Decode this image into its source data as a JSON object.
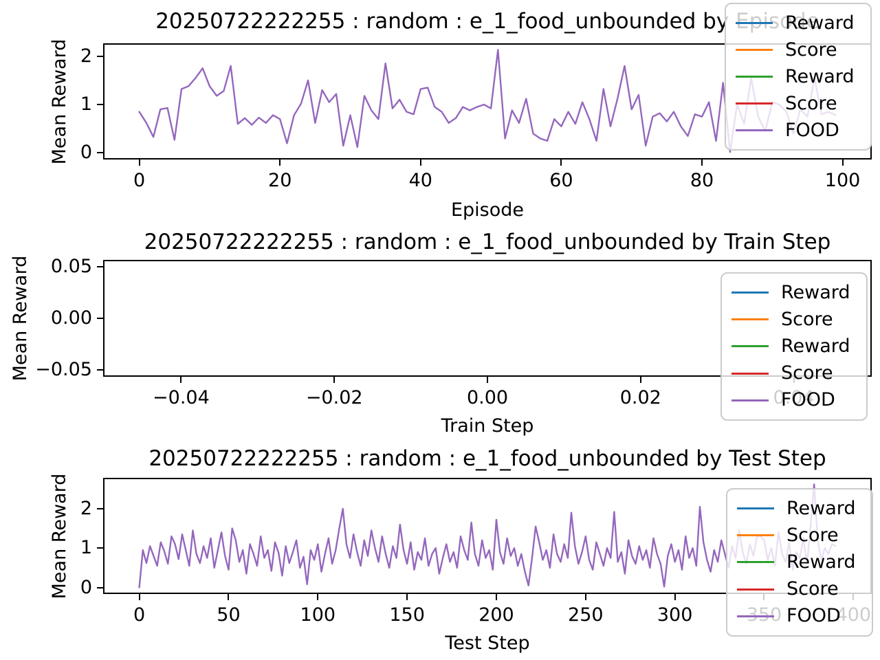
{
  "figure": {
    "background": "#ffffff"
  },
  "legend": {
    "entries": [
      {
        "label": "Reward",
        "color": "#1f77b4"
      },
      {
        "label": "Score",
        "color": "#ff7f0e"
      },
      {
        "label": "Reward",
        "color": "#2ca02c"
      },
      {
        "label": "Score",
        "color": "#d62728"
      },
      {
        "label": "FOOD",
        "color": "#9467bd"
      }
    ]
  },
  "chart_data": [
    {
      "type": "line",
      "title": "20250722222255 : random : e_1_food_unbounded by Episode",
      "xlabel": "Episode",
      "ylabel": "Mean Reward",
      "xlim": [
        -4.95,
        103.95
      ],
      "ylim": [
        -0.107,
        2.237
      ],
      "grid": false,
      "legend_position": "upper right",
      "xticks": [
        {
          "v": 0,
          "label": "0"
        },
        {
          "v": 20,
          "label": "20"
        },
        {
          "v": 40,
          "label": "40"
        },
        {
          "v": 60,
          "label": "60"
        },
        {
          "v": 80,
          "label": "80"
        },
        {
          "v": 100,
          "label": "100"
        }
      ],
      "yticks": [
        {
          "v": 0,
          "label": "0"
        },
        {
          "v": 1,
          "label": "1"
        },
        {
          "v": 2,
          "label": "2"
        }
      ],
      "series": [
        {
          "name": "Reward",
          "color": "#1f77b4",
          "x_start": 0,
          "x_step": 1,
          "values": []
        },
        {
          "name": "Score",
          "color": "#ff7f0e",
          "x_start": 0,
          "x_step": 1,
          "values": []
        },
        {
          "name": "Reward",
          "color": "#2ca02c",
          "x_start": 0,
          "x_step": 1,
          "values": []
        },
        {
          "name": "Score",
          "color": "#d62728",
          "x_start": 0,
          "x_step": 1,
          "values": []
        },
        {
          "name": "FOOD",
          "color": "#9467bd",
          "x_start": 0,
          "x_step": 1,
          "values": [
            0.85,
            0.62,
            0.33,
            0.9,
            0.93,
            0.27,
            1.32,
            1.38,
            1.55,
            1.75,
            1.38,
            1.18,
            1.28,
            1.8,
            0.6,
            0.72,
            0.58,
            0.73,
            0.62,
            0.78,
            0.7,
            0.2,
            0.78,
            1.02,
            1.5,
            0.62,
            1.3,
            1.05,
            1.22,
            0.15,
            0.78,
            0.12,
            1.18,
            0.88,
            0.7,
            1.85,
            0.92,
            1.1,
            0.85,
            0.8,
            1.32,
            1.35,
            0.95,
            0.85,
            0.62,
            0.72,
            0.95,
            0.88,
            0.95,
            1.0,
            0.92,
            2.13,
            0.3,
            0.88,
            0.62,
            1.12,
            0.4,
            0.3,
            0.25,
            0.7,
            0.55,
            0.85,
            0.6,
            1.05,
            0.7,
            0.25,
            1.32,
            0.55,
            1.12,
            1.8,
            0.9,
            1.2,
            0.15,
            0.75,
            0.82,
            0.65,
            0.85,
            0.55,
            0.35,
            0.8,
            0.75,
            1.05,
            0.25,
            1.45,
            0.02,
            1.0,
            0.6,
            1.55,
            0.75,
            0.45,
            1.05,
            1.0,
            0.85,
            0.4,
            0.9,
            0.75,
            1.55,
            0.8,
            0.85,
            0.78
          ]
        }
      ]
    },
    {
      "type": "line",
      "title": "20250722222255 : random : e_1_food_unbounded by Train Step",
      "xlabel": "Train Step",
      "ylabel": "Mean Reward",
      "xlim": [
        -0.05,
        0.05
      ],
      "ylim": [
        -0.055,
        0.055
      ],
      "grid": false,
      "legend_position": "right",
      "xticks": [
        {
          "v": -0.04,
          "label": "−0.04"
        },
        {
          "v": -0.02,
          "label": "−0.02"
        },
        {
          "v": 0,
          "label": "0.00"
        },
        {
          "v": 0.02,
          "label": "0.02"
        },
        {
          "v": 0.04,
          "label": "0.04"
        }
      ],
      "yticks": [
        {
          "v": 0.05,
          "label": "0.05"
        },
        {
          "v": 0,
          "label": "0.00"
        },
        {
          "v": -0.05,
          "label": "−0.05"
        }
      ],
      "series": [
        {
          "name": "Reward",
          "color": "#1f77b4",
          "x_start": 0,
          "x_step": 1,
          "values": []
        },
        {
          "name": "Score",
          "color": "#ff7f0e",
          "x_start": 0,
          "x_step": 1,
          "values": []
        },
        {
          "name": "Reward",
          "color": "#2ca02c",
          "x_start": 0,
          "x_step": 1,
          "values": []
        },
        {
          "name": "Score",
          "color": "#d62728",
          "x_start": 0,
          "x_step": 1,
          "values": []
        },
        {
          "name": "FOOD",
          "color": "#9467bd",
          "x_start": 0,
          "x_step": 1,
          "values": []
        }
      ]
    },
    {
      "type": "line",
      "title": "20250722222255 : random : e_1_food_unbounded by Test Step",
      "xlabel": "Test Step",
      "ylabel": "Mean Reward",
      "xlim": [
        -19.5,
        409.5
      ],
      "ylim": [
        -0.131,
        2.751
      ],
      "grid": false,
      "legend_position": "lower right",
      "xticks": [
        {
          "v": 0,
          "label": "0"
        },
        {
          "v": 50,
          "label": "50"
        },
        {
          "v": 100,
          "label": "100"
        },
        {
          "v": 150,
          "label": "150"
        },
        {
          "v": 200,
          "label": "200"
        },
        {
          "v": 250,
          "label": "250"
        },
        {
          "v": 300,
          "label": "300"
        },
        {
          "v": 350,
          "label": "350"
        },
        {
          "v": 400,
          "label": "400"
        }
      ],
      "yticks": [
        {
          "v": 0,
          "label": "0"
        },
        {
          "v": 1,
          "label": "1"
        },
        {
          "v": 2,
          "label": "2"
        }
      ],
      "series": [
        {
          "name": "Reward",
          "color": "#1f77b4",
          "x_start": 0,
          "x_step": 2,
          "values": []
        },
        {
          "name": "Score",
          "color": "#ff7f0e",
          "x_start": 0,
          "x_step": 2,
          "values": []
        },
        {
          "name": "Reward",
          "color": "#2ca02c",
          "x_start": 0,
          "x_step": 2,
          "values": []
        },
        {
          "name": "Score",
          "color": "#d62728",
          "x_start": 0,
          "x_step": 2,
          "values": []
        },
        {
          "name": "FOOD",
          "color": "#9467bd",
          "x_start": 0,
          "x_step": 2,
          "values": [
            0.0,
            0.95,
            0.62,
            1.05,
            0.8,
            0.55,
            1.15,
            0.92,
            0.6,
            1.3,
            1.1,
            0.72,
            1.35,
            0.95,
            0.55,
            1.45,
            0.85,
            0.62,
            1.05,
            0.75,
            1.25,
            0.5,
            0.95,
            1.4,
            0.8,
            0.45,
            1.5,
            1.2,
            0.65,
            0.95,
            0.35,
            1.1,
            0.85,
            0.55,
            1.3,
            0.75,
            0.95,
            0.42,
            1.15,
            0.88,
            0.3,
            1.05,
            0.62,
            0.9,
            1.2,
            0.5,
            0.78,
            0.08,
            0.95,
            0.7,
            1.1,
            0.4,
            0.85,
            1.25,
            0.6,
            0.95,
            1.5,
            2.0,
            1.1,
            0.75,
            1.35,
            0.9,
            0.55,
            1.2,
            0.8,
            1.45,
            1.0,
            0.65,
            1.3,
            0.85,
            0.5,
            1.05,
            0.75,
            1.6,
            0.95,
            0.6,
            1.15,
            0.45,
            0.9,
            0.7,
            1.25,
            0.55,
            0.85,
            1.0,
            0.35,
            0.75,
            1.1,
            0.65,
            0.9,
            0.5,
            1.3,
            0.95,
            0.7,
            1.65,
            0.85,
            0.55,
            1.2,
            0.75,
            0.95,
            0.45,
            1.72,
            0.9,
            0.6,
            1.25,
            0.8,
            1.0,
            0.55,
            0.85,
            0.4,
            0.05,
            0.75,
            1.55,
            1.15,
            0.7,
            0.95,
            0.5,
            1.35,
            0.85,
            0.65,
            1.1,
            0.75,
            1.9,
            1.05,
            0.6,
            0.9,
            1.3,
            0.7,
            0.45,
            1.15,
            0.85,
            0.55,
            1.0,
            0.75,
            1.92,
            0.65,
            0.9,
            0.35,
            1.2,
            0.8,
            0.6,
            1.05,
            0.7,
            0.95,
            0.5,
            1.25,
            0.85,
            0.6,
            0.02,
            0.8,
            1.1,
            0.65,
            0.95,
            0.45,
            1.3,
            0.75,
            1.0,
            0.55,
            2.05,
            1.15,
            0.7,
            0.4,
            0.95,
            0.65,
            1.2,
            0.85,
            0.5,
            1.05,
            0.75,
            1.45,
            0.9,
            0.6,
            1.1,
            0.8,
            1.3,
            1.3,
            1.2,
            0.7,
            1.0,
            0.55,
            1.4,
            0.85,
            0.65,
            1.15,
            0.45,
            0.9,
            0.75,
            1.25,
            0.6,
            1.55,
            2.62,
            1.2,
            0.7,
            1.0,
            0.85,
            1.1,
            1.05
          ]
        }
      ]
    }
  ]
}
